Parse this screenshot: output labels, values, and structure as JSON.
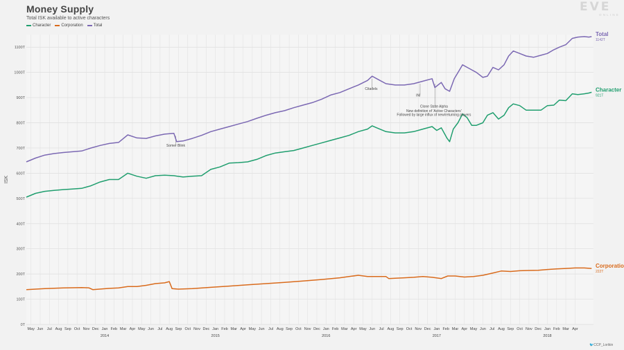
{
  "header": {
    "title": "Money Supply",
    "subtitle": "Total ISK available to active characters"
  },
  "logo": {
    "main": "EVE",
    "sub": "ONLINE"
  },
  "credit": "🐦CCP_Lorikin",
  "chart_data": {
    "type": "line",
    "ylabel": "ISK",
    "ylim": [
      0,
      1150
    ],
    "yticks": [
      0,
      100,
      200,
      300,
      400,
      500,
      600,
      700,
      800,
      900,
      1000,
      1100
    ],
    "ytick_labels": [
      "0T",
      "100T",
      "200T",
      "300T",
      "400T",
      "500T",
      "600T",
      "700T",
      "800T",
      "900T",
      "1000T",
      "1100T"
    ],
    "xlim": [
      0,
      61.5
    ],
    "month_labels": [
      "May",
      "Jun",
      "Jul",
      "Aug",
      "Sep",
      "Oct",
      "Nov",
      "Dec",
      "Jan",
      "Feb",
      "Mar",
      "Apr",
      "May",
      "Jun",
      "Jul",
      "Aug",
      "Sep",
      "Oct",
      "Nov",
      "Dec",
      "Jan",
      "Feb",
      "Mar",
      "Apr",
      "May",
      "Jun",
      "Jul",
      "Aug",
      "Sep",
      "Oct",
      "Nov",
      "Dec",
      "Jan",
      "Feb",
      "Mar",
      "Apr",
      "May",
      "Jun",
      "Jul",
      "Aug",
      "Sep",
      "Oct",
      "Nov",
      "Dec",
      "Jan",
      "Feb",
      "Mar",
      "Apr",
      "May",
      "Jun",
      "Jul",
      "Aug",
      "Sep",
      "Oct",
      "Nov",
      "Dec",
      "Jan",
      "Feb",
      "Mar",
      "Apr"
    ],
    "years": [
      {
        "label": "2014",
        "at": 8.5
      },
      {
        "label": "2015",
        "at": 20.5
      },
      {
        "label": "2016",
        "at": 32.5
      },
      {
        "label": "2017",
        "at": 44.5
      },
      {
        "label": "2018",
        "at": 56.5
      }
    ],
    "grid": true,
    "series": [
      {
        "name": "Character",
        "color": "#1f9e6e",
        "end_label": "921T",
        "points": [
          [
            0,
            505
          ],
          [
            1,
            520
          ],
          [
            2,
            528
          ],
          [
            3,
            532
          ],
          [
            4,
            535
          ],
          [
            5,
            537
          ],
          [
            6,
            540
          ],
          [
            7,
            550
          ],
          [
            8,
            565
          ],
          [
            9,
            575
          ],
          [
            10,
            575
          ],
          [
            11,
            600
          ],
          [
            12,
            588
          ],
          [
            13,
            580
          ],
          [
            14,
            590
          ],
          [
            15,
            592
          ],
          [
            16,
            590
          ],
          [
            17,
            585
          ],
          [
            18,
            588
          ],
          [
            19,
            590
          ],
          [
            20,
            615
          ],
          [
            21,
            625
          ],
          [
            22,
            640
          ],
          [
            23,
            642
          ],
          [
            24,
            645
          ],
          [
            25,
            655
          ],
          [
            26,
            670
          ],
          [
            27,
            680
          ],
          [
            28,
            685
          ],
          [
            29,
            690
          ],
          [
            30,
            700
          ],
          [
            31,
            710
          ],
          [
            32,
            720
          ],
          [
            33,
            730
          ],
          [
            34,
            740
          ],
          [
            35,
            750
          ],
          [
            36,
            765
          ],
          [
            37,
            775
          ],
          [
            37.5,
            788
          ],
          [
            38,
            780
          ],
          [
            39,
            765
          ],
          [
            40,
            760
          ],
          [
            41,
            760
          ],
          [
            42,
            765
          ],
          [
            43,
            775
          ],
          [
            44,
            785
          ],
          [
            44.5,
            770
          ],
          [
            45,
            780
          ],
          [
            45.6,
            740
          ],
          [
            45.9,
            725
          ],
          [
            46.3,
            775
          ],
          [
            46.8,
            800
          ],
          [
            47.3,
            835
          ],
          [
            47.8,
            820
          ],
          [
            48.3,
            790
          ],
          [
            48.8,
            790
          ],
          [
            49.5,
            800
          ],
          [
            50,
            830
          ],
          [
            50.6,
            840
          ],
          [
            51.2,
            815
          ],
          [
            51.8,
            830
          ],
          [
            52.3,
            860
          ],
          [
            52.8,
            875
          ],
          [
            53.5,
            868
          ],
          [
            54.2,
            850
          ],
          [
            55,
            850
          ],
          [
            55.8,
            850
          ],
          [
            56.5,
            868
          ],
          [
            57.2,
            870
          ],
          [
            57.8,
            890
          ],
          [
            58.5,
            888
          ],
          [
            59.2,
            915
          ],
          [
            59.8,
            912
          ],
          [
            60.5,
            915
          ],
          [
            61,
            918
          ],
          [
            61.3,
            921
          ]
        ]
      },
      {
        "name": "Corporation",
        "color": "#d96a1b",
        "end_label": "222T",
        "points": [
          [
            0,
            138
          ],
          [
            2,
            142
          ],
          [
            4,
            145
          ],
          [
            6,
            146
          ],
          [
            6.8,
            145
          ],
          [
            7.2,
            138
          ],
          [
            9,
            143
          ],
          [
            10,
            145
          ],
          [
            11,
            150
          ],
          [
            12,
            150
          ],
          [
            13,
            155
          ],
          [
            14,
            162
          ],
          [
            15,
            165
          ],
          [
            15.5,
            170
          ],
          [
            15.8,
            142
          ],
          [
            16.5,
            140
          ],
          [
            18,
            142
          ],
          [
            20,
            147
          ],
          [
            22,
            152
          ],
          [
            24,
            157
          ],
          [
            26,
            162
          ],
          [
            28,
            167
          ],
          [
            30,
            172
          ],
          [
            32,
            178
          ],
          [
            34,
            185
          ],
          [
            35,
            190
          ],
          [
            36,
            195
          ],
          [
            37,
            190
          ],
          [
            38,
            190
          ],
          [
            39,
            190
          ],
          [
            39.3,
            182
          ],
          [
            40,
            183
          ],
          [
            41,
            185
          ],
          [
            42,
            187
          ],
          [
            43,
            190
          ],
          [
            44,
            187
          ],
          [
            45,
            182
          ],
          [
            45.7,
            192
          ],
          [
            46.5,
            192
          ],
          [
            47.5,
            188
          ],
          [
            48.5,
            190
          ],
          [
            49.5,
            195
          ],
          [
            50.5,
            203
          ],
          [
            51.5,
            212
          ],
          [
            52.5,
            210
          ],
          [
            53.5,
            213
          ],
          [
            54.5,
            214
          ],
          [
            55.5,
            215
          ],
          [
            56.5,
            218
          ],
          [
            57.5,
            220
          ],
          [
            58.5,
            222
          ],
          [
            59.5,
            224
          ],
          [
            60.5,
            224
          ],
          [
            61.3,
            222
          ]
        ]
      },
      {
        "name": "Total",
        "color": "#7b68b3",
        "end_label": "1142T",
        "points": [
          [
            0,
            645
          ],
          [
            1,
            660
          ],
          [
            2,
            672
          ],
          [
            3,
            678
          ],
          [
            4,
            682
          ],
          [
            5,
            685
          ],
          [
            6,
            688
          ],
          [
            7,
            700
          ],
          [
            8,
            710
          ],
          [
            9,
            718
          ],
          [
            10,
            722
          ],
          [
            11,
            752
          ],
          [
            12,
            740
          ],
          [
            13,
            738
          ],
          [
            14,
            748
          ],
          [
            15,
            755
          ],
          [
            16,
            758
          ],
          [
            16.3,
            725
          ],
          [
            17,
            728
          ],
          [
            18,
            738
          ],
          [
            19,
            750
          ],
          [
            20,
            765
          ],
          [
            21,
            775
          ],
          [
            22,
            785
          ],
          [
            23,
            795
          ],
          [
            24,
            805
          ],
          [
            25,
            818
          ],
          [
            26,
            830
          ],
          [
            27,
            840
          ],
          [
            28,
            848
          ],
          [
            29,
            860
          ],
          [
            30,
            870
          ],
          [
            31,
            880
          ],
          [
            32,
            893
          ],
          [
            33,
            910
          ],
          [
            34,
            920
          ],
          [
            35,
            935
          ],
          [
            36,
            950
          ],
          [
            37,
            968
          ],
          [
            37.5,
            985
          ],
          [
            38,
            975
          ],
          [
            39,
            955
          ],
          [
            40,
            950
          ],
          [
            41,
            950
          ],
          [
            42,
            955
          ],
          [
            43,
            965
          ],
          [
            44,
            975
          ],
          [
            44.3,
            940
          ],
          [
            45,
            960
          ],
          [
            45.4,
            935
          ],
          [
            45.9,
            925
          ],
          [
            46.4,
            975
          ],
          [
            46.9,
            1005
          ],
          [
            47.3,
            1030
          ],
          [
            47.8,
            1020
          ],
          [
            48.3,
            1010
          ],
          [
            48.8,
            1000
          ],
          [
            49.5,
            980
          ],
          [
            50,
            985
          ],
          [
            50.6,
            1020
          ],
          [
            51.2,
            1010
          ],
          [
            51.8,
            1030
          ],
          [
            52.3,
            1065
          ],
          [
            52.8,
            1085
          ],
          [
            53.5,
            1075
          ],
          [
            54.2,
            1065
          ],
          [
            55,
            1060
          ],
          [
            55.8,
            1068
          ],
          [
            56.5,
            1075
          ],
          [
            57.2,
            1090
          ],
          [
            57.8,
            1100
          ],
          [
            58.5,
            1110
          ],
          [
            59.2,
            1135
          ],
          [
            59.8,
            1140
          ],
          [
            60.5,
            1142
          ],
          [
            61,
            1140
          ],
          [
            61.3,
            1142
          ]
        ]
      }
    ],
    "annotations": [
      {
        "text": "Somer Blink",
        "x": 16.2,
        "y": 706
      },
      {
        "text": "Citadels",
        "x": 37.4,
        "y": 930
      },
      {
        "text": "INI",
        "x": 42.5,
        "y": 905
      },
      {
        "text": "Clone State Alpha",
        "x": 44.2,
        "y": 860
      },
      {
        "text": "New definition of 'Active Characters'",
        "x": 44.2,
        "y": 843
      },
      {
        "text": "Followed by large influx of new/returning players",
        "x": 44.2,
        "y": 828
      }
    ]
  }
}
